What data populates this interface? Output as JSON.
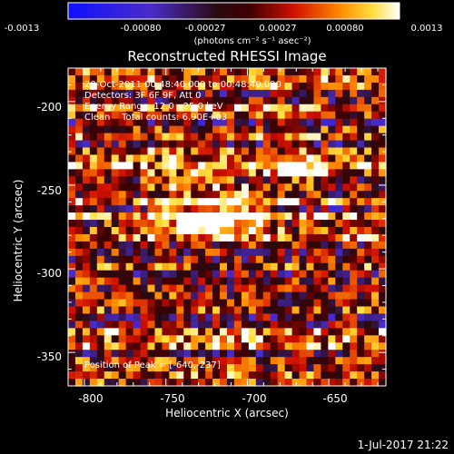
{
  "colorbar": {
    "ticks": [
      "-0.0013",
      "-0.00080",
      "-0.00027",
      "0.00027",
      "0.00080",
      "0.0013"
    ],
    "unit": "(photons cm⁻² s⁻¹ asec⁻²)"
  },
  "chart_data": {
    "type": "heatmap",
    "title": "Reconstructed RHESSI Image",
    "xlabel": "Heliocentric X (arcsec)",
    "ylabel": "Heliocentric Y (arcsec)",
    "xlim": [
      -810,
      -615
    ],
    "ylim": [
      -370,
      -180
    ],
    "xticks": [
      "-800",
      "-750",
      "-700",
      "-650"
    ],
    "yticks": [
      "-200",
      "-250",
      "-300",
      "-350"
    ],
    "clim": [
      -0.0013,
      0.0013
    ],
    "colormap": "hot-blue",
    "peak": [
      -640,
      -237
    ]
  },
  "annotations": {
    "line1": "20-Oct-2011 00:48:40.000 to 00:48:40.000",
    "line2": "Detectors: 3F 6F 9F, Att 0",
    "line3": "Energy Range: 12.0 - 25.0 keV",
    "line4": "Clean    Total counts: 6.90E+03",
    "peak": "Position of Peak = [-640,-237]"
  },
  "footer": "1-Jul-2017 21:22"
}
